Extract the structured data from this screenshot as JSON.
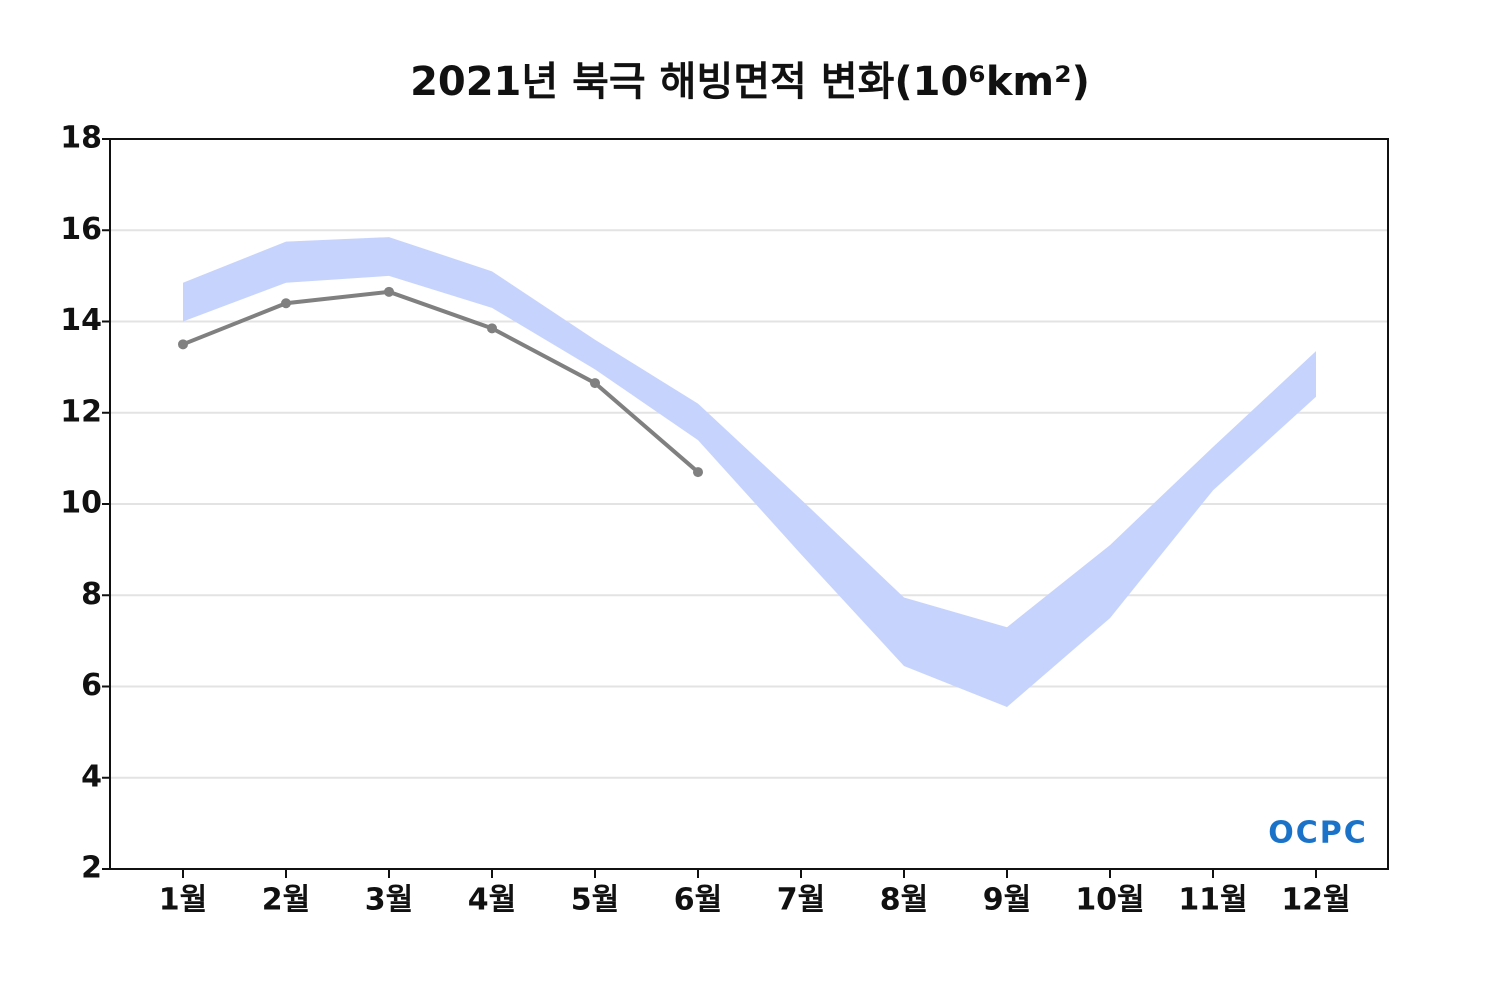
{
  "chart_data": {
    "type": "line",
    "title": "2021년 북극 해빙면적 변화(10⁶km²)",
    "categories": [
      "1월",
      "2월",
      "3월",
      "4월",
      "5월",
      "6월",
      "7월",
      "8월",
      "9월",
      "10월",
      "11월",
      "12월"
    ],
    "values": [
      13.5,
      14.4,
      14.65,
      13.85,
      12.65,
      10.7,
      null,
      null,
      null,
      null,
      null,
      null
    ],
    "color": "#808080",
    "band": {
      "lower": [
        14.0,
        14.85,
        15.0,
        14.3,
        12.95,
        11.4,
        8.9,
        6.45,
        5.55,
        7.5,
        10.3,
        12.35
      ],
      "upper": [
        14.85,
        15.75,
        15.85,
        15.1,
        13.6,
        12.2,
        10.1,
        7.95,
        7.3,
        9.1,
        11.25,
        13.35
      ],
      "color": "#c6d3fd"
    },
    "ylim": [
      2,
      18
    ],
    "yticks": [
      2,
      4,
      6,
      8,
      10,
      12,
      14,
      16,
      18
    ],
    "grid": true,
    "logo": "OCPC"
  }
}
